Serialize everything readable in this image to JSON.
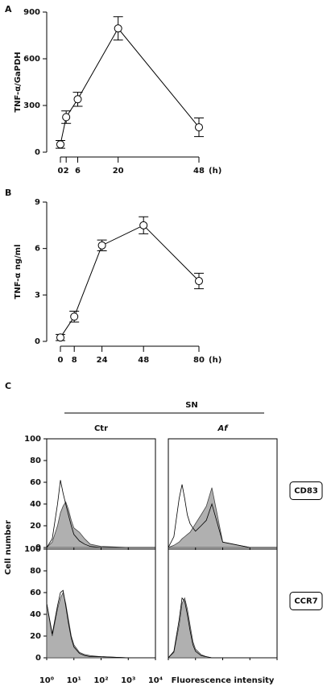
{
  "chart_data": [
    {
      "type": "line",
      "title": "A",
      "ylabel": "TNF-α/GaPDH",
      "x_unit": "(h)",
      "x": [
        0,
        2,
        6,
        20,
        48
      ],
      "values": [
        50,
        225,
        340,
        795,
        160
      ],
      "errors": [
        25,
        40,
        45,
        75,
        60
      ],
      "xlim": [
        0,
        48
      ],
      "xticks": [
        0,
        2,
        6,
        20,
        48
      ],
      "ylim": [
        0,
        900
      ],
      "yticks": [
        0,
        300,
        600,
        900
      ],
      "color": "#000"
    },
    {
      "type": "line",
      "title": "B",
      "ylabel": "TNF-α ng/ml",
      "x_unit": "(h)",
      "x": [
        0,
        8,
        24,
        48,
        80
      ],
      "values": [
        0.25,
        1.6,
        6.2,
        7.5,
        3.9
      ],
      "errors": [
        0.2,
        0.35,
        0.35,
        0.55,
        0.5
      ],
      "xlim": [
        0,
        80
      ],
      "xticks": [
        0,
        8,
        24,
        48,
        80
      ],
      "ylim": [
        0,
        9
      ],
      "yticks": [
        0,
        3,
        6,
        9
      ],
      "color": "#000"
    },
    {
      "type": "histogram-grid",
      "title": "C",
      "header": "SN",
      "columns": [
        "Ctr",
        "Af"
      ],
      "rows": [
        "CD83",
        "CCR7"
      ],
      "ylabel": "Cell number",
      "xlabel": "Fluorescence intensity",
      "log_x": true,
      "xlim": [
        1,
        10000
      ],
      "xticks": [
        {
          "value": 1,
          "label": "10⁰"
        },
        {
          "value": 10,
          "label": "10¹"
        },
        {
          "value": 100,
          "label": "10²"
        },
        {
          "value": 1000,
          "label": "10³"
        },
        {
          "value": 10000,
          "label": "10⁴"
        }
      ],
      "ylim": [
        0,
        100
      ],
      "yticks": [
        0,
        20,
        40,
        60,
        80,
        100
      ],
      "x": [
        1,
        1.6,
        2.5,
        3.2,
        4,
        5,
        6.3,
        8,
        10,
        16,
        25,
        40,
        100,
        1000,
        10000
      ],
      "panels": [
        {
          "series": [
            {
              "color": "#b0b0b0",
              "values": [
                0,
                5,
                20,
                32,
                38,
                42,
                35,
                25,
                18,
                14,
                8,
                3,
                1,
                0,
                0
              ]
            },
            {
              "color": "#000000",
              "values": [
                0,
                8,
                40,
                62,
                50,
                40,
                30,
                20,
                12,
                6,
                3,
                1,
                0,
                0,
                0
              ]
            }
          ]
        },
        {
          "series": [
            {
              "color": "#b0b0b0",
              "values": [
                0,
                2,
                5,
                8,
                10,
                12,
                14,
                18,
                22,
                30,
                38,
                55,
                5,
                0,
                0
              ]
            },
            {
              "color": "#000000",
              "values": [
                0,
                10,
                45,
                58,
                45,
                30,
                22,
                18,
                15,
                20,
                25,
                40,
                5,
                0,
                0
              ]
            }
          ]
        },
        {
          "series": [
            {
              "color": "#b0b0b0",
              "values": [
                50,
                20,
                45,
                55,
                60,
                50,
                35,
                20,
                12,
                5,
                3,
                2,
                1,
                0,
                0
              ]
            },
            {
              "color": "#000000",
              "values": [
                50,
                22,
                48,
                60,
                62,
                48,
                32,
                18,
                10,
                4,
                2,
                1,
                1,
                0,
                0
              ]
            }
          ]
        },
        {
          "series": [
            {
              "color": "#b0b0b0",
              "values": [
                0,
                5,
                30,
                50,
                55,
                45,
                30,
                15,
                8,
                3,
                1,
                0,
                0,
                0,
                0
              ]
            },
            {
              "color": "#000000",
              "values": [
                0,
                6,
                35,
                55,
                52,
                40,
                25,
                12,
                6,
                2,
                1,
                0,
                0,
                0,
                0
              ]
            }
          ]
        }
      ]
    }
  ]
}
